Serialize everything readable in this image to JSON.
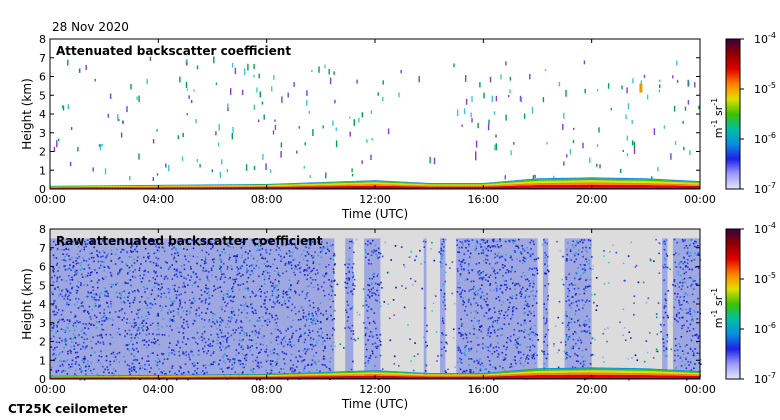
{
  "page": {
    "date": "28 Nov 2020",
    "instrument": "CT25K ceilometer"
  },
  "colors": {
    "plot_background": "#ffffff",
    "raw_background": "#dcdcdc",
    "noise": [
      "#1a2be0",
      "#2d47f5",
      "#0a0ab8",
      "#3ec7d8",
      "#7f3fd0",
      "#00a24f",
      "#a0a0ff"
    ],
    "colormap": [
      "#e6e6ff",
      "#9c9cff",
      "#1e22e6",
      "#0a8fe0",
      "#00c0a0",
      "#40c000",
      "#e0e000",
      "#ff8000",
      "#e00000",
      "#900000",
      "#3a0040"
    ]
  },
  "chart_data": [
    {
      "type": "heatmap",
      "title": "Attenuated backscatter coefficient",
      "xlabel": "Time (UTC)",
      "ylabel": "Height (km)",
      "x_ticks": [
        "00:00",
        "04:00",
        "08:00",
        "12:00",
        "16:00",
        "20:00",
        "00:00"
      ],
      "x_range_hours": [
        0,
        24
      ],
      "y_ticks": [
        "0",
        "1",
        "2",
        "3",
        "4",
        "5",
        "6",
        "7",
        "8"
      ],
      "ylim": [
        0,
        8
      ],
      "colorbar": {
        "unit_base": "m",
        "unit_base_exp": "-1",
        "unit_sr": "sr",
        "unit_sr_exp": "-1",
        "tick_base": "10",
        "tick_exponents": [
          "-4",
          "-5",
          "-6",
          "-7"
        ],
        "log_range": [
          -7,
          -4
        ]
      },
      "boundary_layer_top_km": [
        [
          0,
          0.15
        ],
        [
          4,
          0.2
        ],
        [
          8,
          0.25
        ],
        [
          12,
          0.45
        ],
        [
          14,
          0.3
        ],
        [
          16,
          0.3
        ],
        [
          18,
          0.55
        ],
        [
          20,
          0.6
        ],
        [
          22,
          0.55
        ],
        [
          24,
          0.4
        ]
      ],
      "cloud_patches": [
        {
          "hour": 21.8,
          "height_km": 5.3,
          "log_beta": -4.6
        }
      ]
    },
    {
      "type": "heatmap",
      "title": "Raw attenuated backscatter coefficient",
      "xlabel": "Time (UTC)",
      "ylabel": "Height (km)",
      "x_ticks": [
        "00:00",
        "04:00",
        "08:00",
        "12:00",
        "16:00",
        "20:00",
        "00:00"
      ],
      "x_range_hours": [
        0,
        24
      ],
      "y_ticks": [
        "0",
        "1",
        "2",
        "3",
        "4",
        "5",
        "6",
        "7",
        "8"
      ],
      "ylim": [
        0,
        8
      ],
      "signal_top_km": 7.5,
      "colorbar": {
        "unit_base": "m",
        "unit_base_exp": "-1",
        "unit_sr": "sr",
        "unit_sr_exp": "-1",
        "tick_base": "10",
        "tick_exponents": [
          "-4",
          "-5",
          "-6",
          "-7"
        ],
        "log_range": [
          -7,
          -4
        ]
      },
      "noise_periods_hours": [
        [
          0,
          10.5
        ],
        [
          10.9,
          11.2
        ],
        [
          11.6,
          12.2
        ],
        [
          13.8,
          13.9
        ],
        [
          14.4,
          14.6
        ],
        [
          15.0,
          18.0
        ],
        [
          18.2,
          18.4
        ],
        [
          19.0,
          20.0
        ],
        [
          22.6,
          22.8
        ],
        [
          23.0,
          24.0
        ]
      ],
      "clean_periods_hours": [
        [
          12.2,
          15.0
        ],
        [
          18.4,
          19.0
        ],
        [
          20.0,
          22.6
        ]
      ]
    }
  ]
}
